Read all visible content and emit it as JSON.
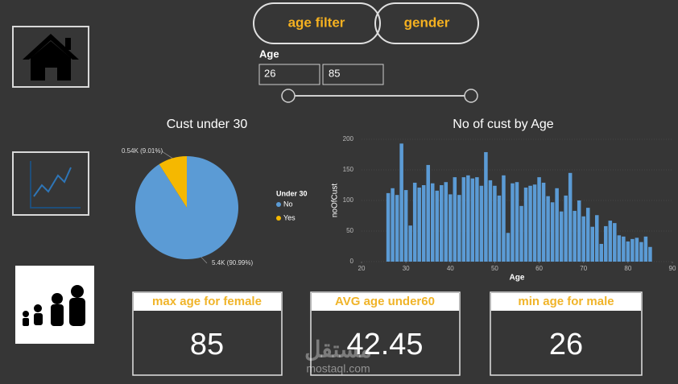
{
  "filters": [
    "age filter",
    "gender"
  ],
  "slicer": {
    "label": "Age",
    "min": 26,
    "max": 85
  },
  "chart_data": [
    {
      "type": "pie",
      "title": "Cust under 30",
      "legend_title": "Under 30",
      "categories": [
        "No",
        "Yes"
      ],
      "values": [
        5440,
        540
      ],
      "value_labels": [
        "5.4K (90.99%)",
        "0.54K (9.01%)"
      ],
      "colors": [
        "#5b9bd5",
        "#f5b800"
      ]
    },
    {
      "type": "bar",
      "title": "No of cust by Age",
      "x_label": "Age",
      "y_label": "noOfCust",
      "color": "#5b9bd5",
      "x": [
        26,
        27,
        28,
        29,
        30,
        31,
        32,
        33,
        34,
        35,
        36,
        37,
        38,
        39,
        40,
        41,
        42,
        43,
        44,
        45,
        46,
        47,
        48,
        49,
        50,
        51,
        52,
        53,
        54,
        55,
        56,
        57,
        58,
        59,
        60,
        61,
        62,
        63,
        64,
        65,
        66,
        67,
        68,
        69,
        70,
        71,
        72,
        73,
        74,
        75,
        76,
        77,
        78,
        79,
        80,
        81,
        82,
        83,
        84,
        85
      ],
      "values": [
        112,
        120,
        109,
        193,
        117,
        59,
        129,
        121,
        125,
        158,
        128,
        116,
        125,
        130,
        110,
        138,
        109,
        138,
        141,
        136,
        138,
        124,
        179,
        133,
        124,
        108,
        141,
        47,
        128,
        130,
        91,
        121,
        124,
        126,
        138,
        129,
        107,
        97,
        120,
        82,
        108,
        145,
        83,
        100,
        74,
        88,
        57,
        76,
        29,
        58,
        67,
        63,
        43,
        41,
        33,
        37,
        39,
        32,
        41,
        24
      ],
      "xlim": [
        20,
        90
      ],
      "xticks": [
        20,
        30,
        40,
        50,
        60,
        70,
        80,
        90
      ],
      "ylim": [
        0,
        200
      ],
      "yticks": [
        0,
        50,
        100,
        150,
        200
      ]
    }
  ],
  "cards": [
    {
      "title": "max age for female",
      "value": 85
    },
    {
      "title": "AVG age under60",
      "value": 42.45
    },
    {
      "title": "min age for male",
      "value": 26
    }
  ],
  "watermark": {
    "brand": "مستقل",
    "site": "mostaql.com"
  }
}
